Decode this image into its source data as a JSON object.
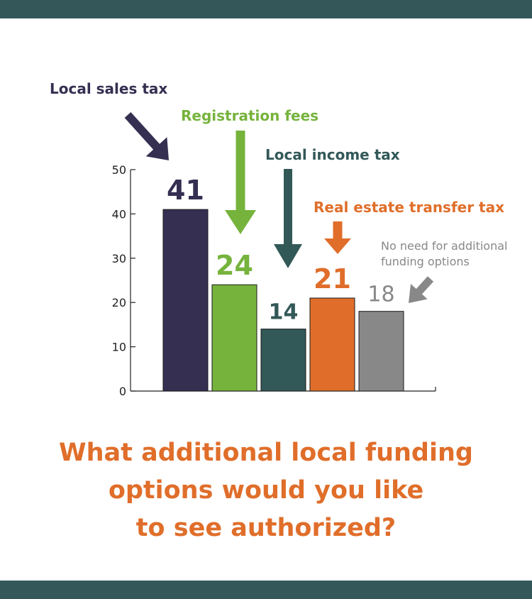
{
  "colors": {
    "band": "#34575a",
    "headline": "#e06e2a",
    "axis": "#222222",
    "bar_outline": "#1a1a1a"
  },
  "headline": {
    "lines": [
      "What additional local funding",
      "options would you like",
      "to see authorized?"
    ]
  },
  "chart_data": {
    "type": "bar",
    "categories": [
      "Local sales tax",
      "Registration fees",
      "Local income tax",
      "Real estate transfer tax",
      "No need for additional funding options"
    ],
    "values": [
      41,
      24,
      14,
      21,
      18
    ],
    "data_labels": [
      "41",
      "24",
      "14",
      "21",
      "18"
    ],
    "colors": [
      "#352f52",
      "#76b33d",
      "#335858",
      "#e06e2a",
      "#888888"
    ],
    "ylim": [
      0,
      50
    ],
    "yticks": [
      0,
      10,
      20,
      30,
      40,
      50
    ],
    "grid": false,
    "legend": "none",
    "annotations": [
      {
        "text": "Local sales tax",
        "color": "#352f52"
      },
      {
        "text": "Registration fees",
        "color": "#76b33d"
      },
      {
        "text": "Local income tax",
        "color": "#335858"
      },
      {
        "text": "Real estate transfer tax",
        "color": "#e06e2a"
      },
      {
        "lines": [
          "No need for additional",
          "funding options"
        ],
        "color": "#888888"
      }
    ]
  }
}
